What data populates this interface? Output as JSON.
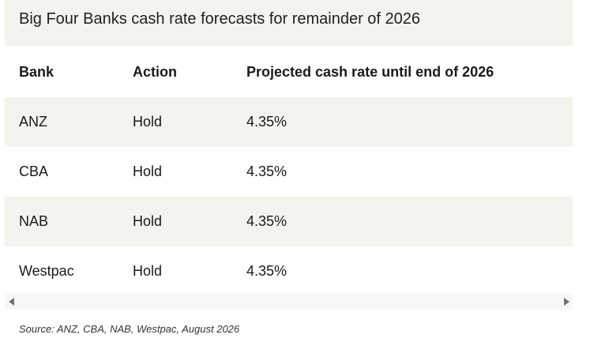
{
  "title": "Big Four Banks cash rate forecasts for remainder of 2026",
  "table": {
    "headers": [
      "Bank",
      "Action",
      "Projected cash rate until end of 2026"
    ],
    "rows": [
      [
        "ANZ",
        "Hold",
        "4.35%"
      ],
      [
        "CBA",
        "Hold",
        "4.35%"
      ],
      [
        "NAB",
        "Hold",
        "4.35%"
      ],
      [
        "Westpac",
        "Hold",
        "4.35%"
      ]
    ]
  },
  "source": "Source: ANZ, CBA, NAB, Westpac, August 2026",
  "colors": {
    "shaded_row": "#f4f3ee",
    "text": "#1a1a1a"
  }
}
